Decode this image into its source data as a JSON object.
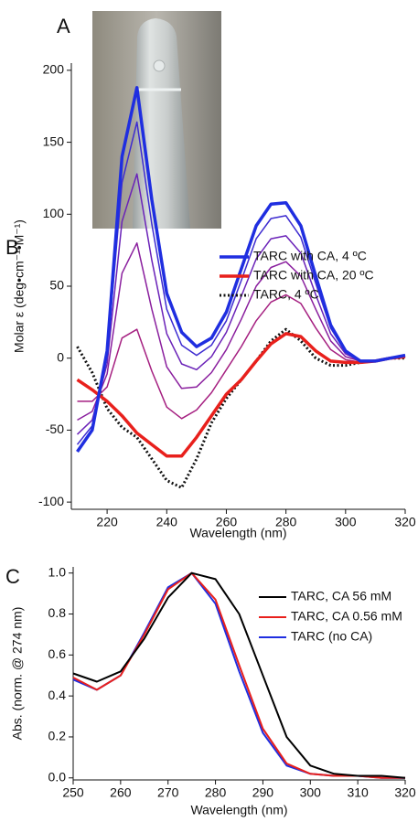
{
  "panel_labels": [
    "A",
    "B",
    "C"
  ],
  "chart_data": [
    {
      "type": "line",
      "xlabel": "Wavelength (nm)",
      "ylabel": "Molar ε (deg•cm⁻¹•M⁻¹)",
      "x": [
        210,
        215,
        220,
        225,
        230,
        235,
        240,
        245,
        250,
        255,
        260,
        265,
        270,
        275,
        280,
        285,
        290,
        295,
        300,
        305,
        310,
        315,
        320
      ],
      "xlim": [
        208,
        320
      ],
      "ylim": [
        -105,
        205
      ],
      "xticks": [
        220,
        240,
        260,
        280,
        300,
        320
      ],
      "yticks": [
        -100,
        -50,
        0,
        50,
        100,
        150,
        200
      ],
      "legend": "upper right",
      "series": [
        {
          "name": "TARC with CA, 4 ºC",
          "color": "#1f2ee0",
          "width": 3.5,
          "style": "solid",
          "values": [
            -65,
            -50,
            5,
            140,
            188,
            110,
            45,
            18,
            8,
            14,
            32,
            62,
            92,
            107,
            108,
            92,
            57,
            23,
            5,
            -2,
            -2,
            0,
            2
          ]
        },
        {
          "name": "TARC with CA, 20 ºC",
          "color": "#e8201c",
          "width": 3.5,
          "style": "solid",
          "values": [
            -15,
            -22,
            -30,
            -40,
            -52,
            -60,
            -68,
            -68,
            -55,
            -40,
            -25,
            -15,
            -2,
            10,
            17,
            15,
            5,
            -2,
            -3,
            -3,
            -2,
            0,
            1
          ]
        },
        {
          "name": "TARC, 4 ºC",
          "color": "#111111",
          "width": 3,
          "style": "dotted",
          "values": [
            8,
            -10,
            -35,
            -48,
            -55,
            -70,
            -85,
            -90,
            -70,
            -45,
            -28,
            -15,
            -2,
            12,
            20,
            12,
            0,
            -5,
            -5,
            -3,
            -2,
            0,
            0
          ]
        },
        {
          "color": "#3d2bd0",
          "width": 1.5,
          "style": "solid",
          "values": [
            -60,
            -47,
            2,
            122,
            164,
            93,
            34,
            9,
            2,
            9,
            26,
            54,
            83,
            97,
            99,
            84,
            52,
            21,
            4,
            -2,
            -2,
            0,
            2
          ]
        },
        {
          "color": "#6a22b8",
          "width": 1.5,
          "style": "solid",
          "values": [
            -53,
            -43,
            -4,
            95,
            128,
            68,
            17,
            -4,
            -8,
            1,
            18,
            43,
            69,
            83,
            85,
            73,
            44,
            17,
            3,
            -2,
            -2,
            0,
            2
          ]
        },
        {
          "color": "#8a1f9e",
          "width": 1.5,
          "style": "solid",
          "values": [
            -43,
            -37,
            -11,
            59,
            80,
            34,
            -6,
            -21,
            -20,
            -10,
            6,
            27,
            50,
            63,
            67,
            57,
            34,
            12,
            1,
            -2,
            -2,
            0,
            2
          ]
        },
        {
          "color": "#a51f80",
          "width": 1.5,
          "style": "solid",
          "values": [
            -30,
            -30,
            -20,
            14,
            20,
            -9,
            -34,
            -42,
            -36,
            -24,
            -8,
            8,
            26,
            39,
            44,
            38,
            21,
            6,
            -1,
            -3,
            -2,
            0,
            1
          ]
        }
      ]
    },
    {
      "type": "line",
      "xlabel": "Wavelength (nm)",
      "ylabel": "Abs. (norm. @ 274 nm)",
      "x": [
        250,
        255,
        260,
        265,
        270,
        275,
        280,
        285,
        290,
        295,
        300,
        305,
        310,
        315,
        320
      ],
      "xlim": [
        250,
        320
      ],
      "ylim": [
        -0.01,
        1.03
      ],
      "xticks": [
        250,
        260,
        270,
        280,
        290,
        300,
        310,
        320
      ],
      "yticks": [
        {
          "value": 0,
          "label": "0.0"
        },
        0.2,
        0.4,
        0.6,
        0.8,
        {
          "value": 1,
          "label": "1.0"
        }
      ],
      "legend": "upper right",
      "series": [
        {
          "name": "TARC, CA 56 mM",
          "color": "#000000",
          "width": 2,
          "style": "solid",
          "values": [
            0.51,
            0.47,
            0.52,
            0.68,
            0.88,
            1.0,
            0.97,
            0.8,
            0.5,
            0.2,
            0.06,
            0.02,
            0.01,
            0.01,
            0.0
          ]
        },
        {
          "name": "TARC, CA 0.56 mM",
          "color": "#e8201c",
          "width": 2,
          "style": "solid",
          "values": [
            0.49,
            0.43,
            0.5,
            0.7,
            0.92,
            1.0,
            0.87,
            0.55,
            0.24,
            0.07,
            0.02,
            0.01,
            0.01,
            0.0,
            0.0
          ]
        },
        {
          "name": "TARC (no CA)",
          "color": "#1f2ee0",
          "width": 2,
          "style": "solid",
          "values": [
            0.48,
            0.43,
            0.5,
            0.71,
            0.93,
            1.0,
            0.85,
            0.52,
            0.22,
            0.06,
            0.02,
            0.01,
            0.01,
            0.0,
            0.0
          ]
        }
      ]
    }
  ]
}
